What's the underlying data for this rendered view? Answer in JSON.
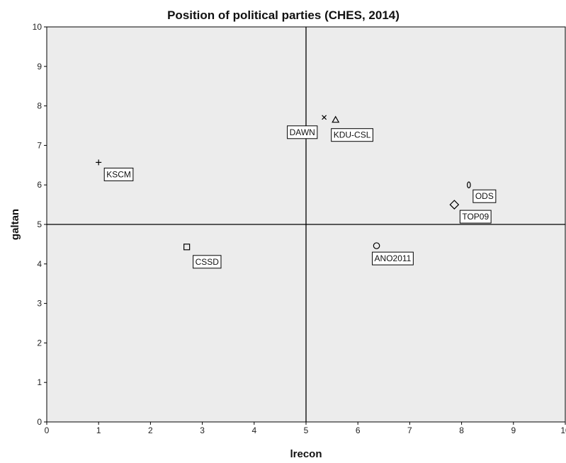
{
  "chart_data": {
    "type": "scatter",
    "title": "Position of political parties (CHES, 2014)",
    "xlabel": "lrecon",
    "ylabel": "galtan",
    "xlim": [
      0,
      10
    ],
    "ylim": [
      0,
      10
    ],
    "xticks": [
      "0",
      "1",
      "2",
      "3",
      "4",
      "5",
      "6",
      "7",
      "8",
      "9",
      "10"
    ],
    "yticks": [
      "0",
      "1",
      "2",
      "3",
      "4",
      "5",
      "6",
      "7",
      "8",
      "9",
      "10"
    ],
    "reference_lines": {
      "x": 5,
      "y": 5
    },
    "grid": false,
    "plot_background": "#ececec",
    "points": [
      {
        "label": "KSCM",
        "x": 1.0,
        "y": 6.57,
        "marker": "plus"
      },
      {
        "label": "CSSD",
        "x": 2.7,
        "y": 4.43,
        "marker": "square"
      },
      {
        "label": "DAWN",
        "x": 5.35,
        "y": 7.71,
        "marker": "x"
      },
      {
        "label": "KDU-CSL",
        "x": 5.57,
        "y": 7.64,
        "marker": "triangle"
      },
      {
        "label": "ANO2011",
        "x": 6.36,
        "y": 4.46,
        "marker": "circle"
      },
      {
        "label": "ODS",
        "x": 8.14,
        "y": 6.0,
        "marker": "ellipse"
      },
      {
        "label": "TOP09",
        "x": 7.86,
        "y": 5.5,
        "marker": "diamond"
      }
    ]
  }
}
